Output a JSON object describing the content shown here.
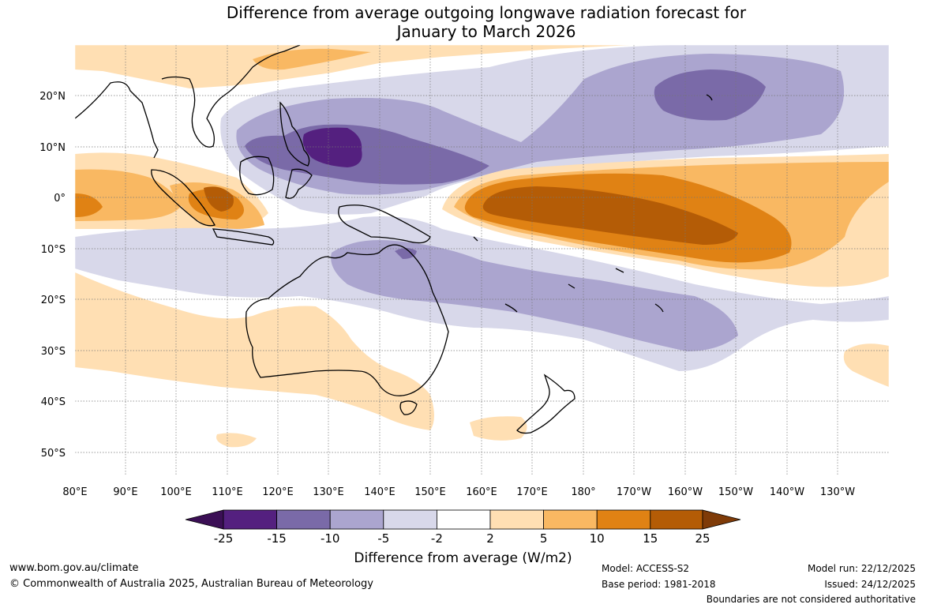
{
  "title_line1": "Difference from average outgoing longwave radiation forecast for",
  "title_line2": "January to March 2026",
  "lon_labels": [
    "80°E",
    "90°E",
    "100°E",
    "110°E",
    "120°E",
    "130°E",
    "140°E",
    "150°E",
    "160°E",
    "170°E",
    "180°",
    "170°W",
    "160°W",
    "150°W",
    "140°W",
    "130°W"
  ],
  "lat_labels": [
    "20°N",
    "10°N",
    "0°",
    "10°S",
    "20°S",
    "30°S",
    "40°S",
    "50°S"
  ],
  "colorbar": {
    "ticks": [
      "-25",
      "-15",
      "-10",
      "-5",
      "-2",
      "2",
      "5",
      "10",
      "15",
      "25"
    ],
    "colors": [
      "#3b0f55",
      "#54207f",
      "#7a6aa8",
      "#aba5cf",
      "#d8d8ea",
      "#ffffff",
      "#ffdfb3",
      "#f9b862",
      "#e08214",
      "#b45c06",
      "#7f3b08"
    ],
    "label": "Difference from average (W/m2)"
  },
  "footer": {
    "website": "www.bom.gov.au/climate",
    "copyright": "© Commonwealth of Australia 2025, Australian Bureau of Meteorology",
    "model": "Model: ACCESS-S2",
    "base_period": "Base period: 1981-2018",
    "model_run": "Model run: 22/12/2025",
    "issued": "Issued: 24/12/2025",
    "disclaimer": "Boundaries are not considered authoritative"
  }
}
